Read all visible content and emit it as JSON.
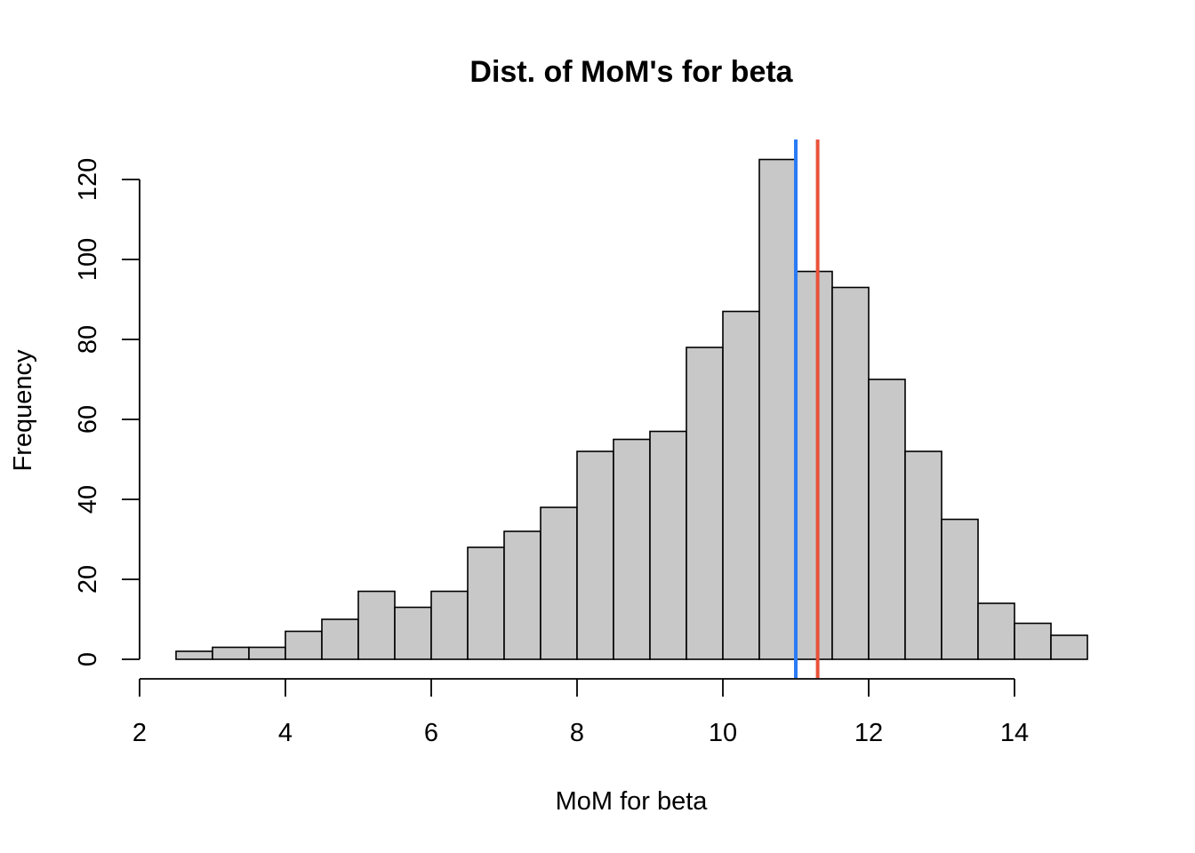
{
  "chart_data": {
    "type": "bar",
    "title": "Dist. of MoM's for beta",
    "xlabel": "MoM for beta",
    "ylabel": "Frequency",
    "bin_width": 0.5,
    "bins": [
      {
        "start": 2.5,
        "end": 3.0,
        "count": 2
      },
      {
        "start": 3.0,
        "end": 3.5,
        "count": 3
      },
      {
        "start": 3.5,
        "end": 4.0,
        "count": 3
      },
      {
        "start": 4.0,
        "end": 4.5,
        "count": 7
      },
      {
        "start": 4.5,
        "end": 5.0,
        "count": 10
      },
      {
        "start": 5.0,
        "end": 5.5,
        "count": 17
      },
      {
        "start": 5.5,
        "end": 6.0,
        "count": 13
      },
      {
        "start": 6.0,
        "end": 6.5,
        "count": 17
      },
      {
        "start": 6.5,
        "end": 7.0,
        "count": 28
      },
      {
        "start": 7.0,
        "end": 7.5,
        "count": 32
      },
      {
        "start": 7.5,
        "end": 8.0,
        "count": 38
      },
      {
        "start": 8.0,
        "end": 8.5,
        "count": 52
      },
      {
        "start": 8.5,
        "end": 9.0,
        "count": 55
      },
      {
        "start": 9.0,
        "end": 9.5,
        "count": 57
      },
      {
        "start": 9.5,
        "end": 10.0,
        "count": 78
      },
      {
        "start": 10.0,
        "end": 10.5,
        "count": 87
      },
      {
        "start": 10.5,
        "end": 11.0,
        "count": 125
      },
      {
        "start": 11.0,
        "end": 11.5,
        "count": 97
      },
      {
        "start": 11.5,
        "end": 12.0,
        "count": 93
      },
      {
        "start": 12.0,
        "end": 12.5,
        "count": 70
      },
      {
        "start": 12.5,
        "end": 13.0,
        "count": 52
      },
      {
        "start": 13.0,
        "end": 13.5,
        "count": 35
      },
      {
        "start": 13.5,
        "end": 14.0,
        "count": 14
      },
      {
        "start": 14.0,
        "end": 14.5,
        "count": 9
      },
      {
        "start": 14.5,
        "end": 15.0,
        "count": 6
      }
    ],
    "xlim": [
      2,
      15
    ],
    "ylim": [
      0,
      125
    ],
    "xticks": [
      2,
      4,
      6,
      8,
      10,
      12,
      14
    ],
    "yticks": [
      0,
      20,
      40,
      60,
      80,
      100,
      120
    ],
    "xtick_labels": [
      "2",
      "4",
      "6",
      "8",
      "10",
      "12",
      "14"
    ],
    "ytick_labels": [
      "0",
      "20",
      "40",
      "60",
      "80",
      "100",
      "120"
    ],
    "vlines": [
      {
        "x": 11.0,
        "color": "#2b7bf5"
      },
      {
        "x": 11.3,
        "color": "#e8523a"
      }
    ],
    "bar_color": "#c8c8c8",
    "grid": false,
    "legend": "none"
  }
}
